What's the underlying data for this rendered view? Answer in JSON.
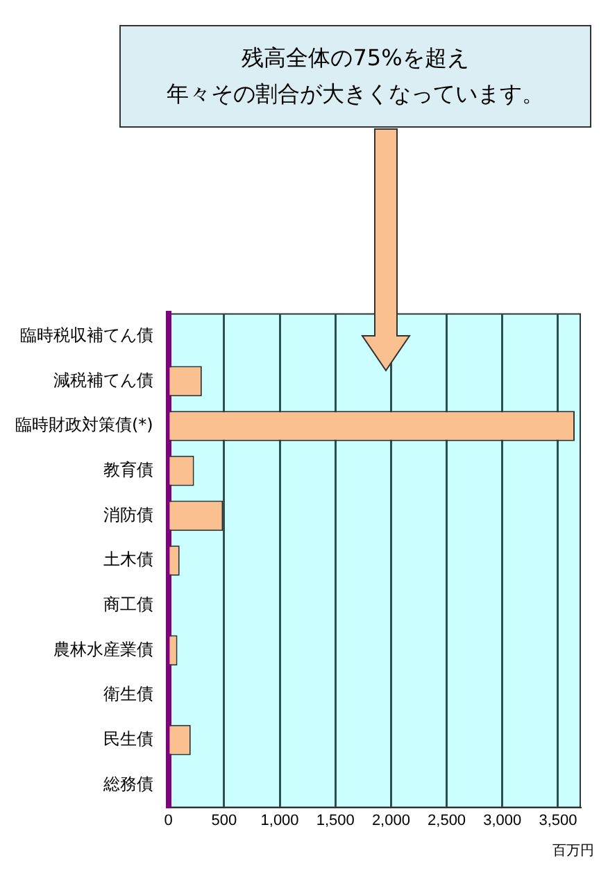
{
  "chart_data": {
    "type": "bar",
    "orientation": "horizontal",
    "xlabel": "百万円",
    "annotations": [
      "残高全体の75%を超え",
      "年々その割合が大きくなっています。"
    ],
    "categories": [
      "臨時税収補てん債",
      "減税補てん債",
      "臨時財政対策債(*)",
      "教育債",
      "消防債",
      "土木債",
      "商工債",
      "農林水産業債",
      "衛生債",
      "民生債",
      "総務債"
    ],
    "values": [
      null,
      300,
      3650,
      230,
      490,
      100,
      0,
      80,
      0,
      200,
      null
    ],
    "color": "#fac090",
    "xlim": [
      0,
      3700
    ],
    "xticks": [
      0,
      500,
      {
        "value": 1000,
        "label": "1,000"
      },
      {
        "value": 1500,
        "label": "1,500"
      },
      {
        "value": 2000,
        "label": "2,000"
      },
      {
        "value": 2500,
        "label": "2,500"
      },
      {
        "value": 3000,
        "label": "3,000"
      },
      {
        "value": 3500,
        "label": "3,500"
      }
    ],
    "grid": "x",
    "legend": false
  }
}
